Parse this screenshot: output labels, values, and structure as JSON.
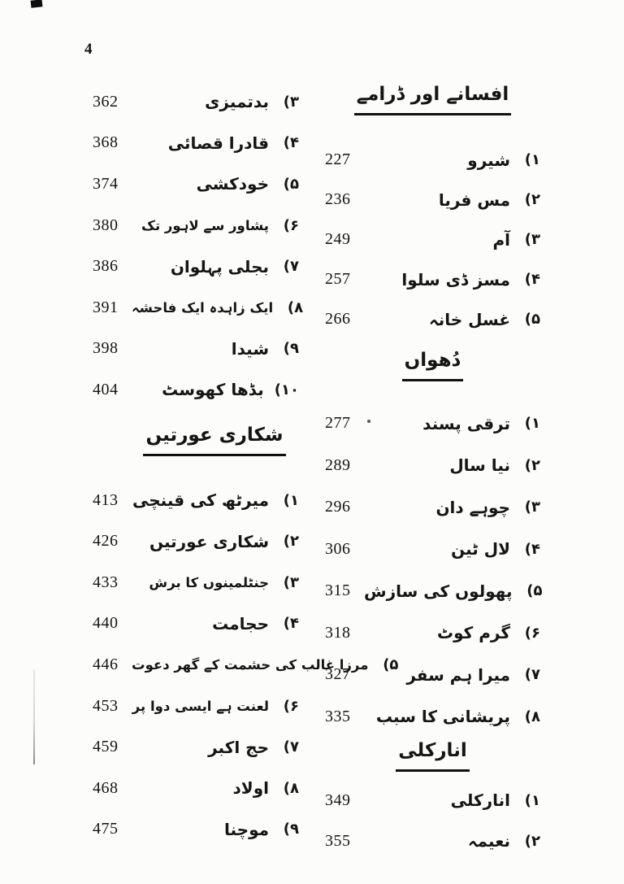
{
  "page": {
    "folio_number": "4",
    "ink_color": "#151515",
    "paper_color": "#fcfcfa"
  },
  "columns": {
    "right": {
      "sections": [
        {
          "header": "افسانے اور ڈرامے",
          "entries": [
            {
              "marker": "(۱",
              "title": "شیرو",
              "page": "227"
            },
            {
              "marker": "(۲",
              "title": "مس فریا",
              "page": "236"
            },
            {
              "marker": "(۳",
              "title": "آم",
              "page": "249"
            },
            {
              "marker": "(۴",
              "title": "مسز ڈی سلوا",
              "page": "257"
            },
            {
              "marker": "(۵",
              "title": "غسل خانہ",
              "page": "266"
            }
          ]
        },
        {
          "header": "دُھواں",
          "entries": [
            {
              "marker": "(۱",
              "title": "ترقی پسند",
              "page": "277"
            },
            {
              "marker": "(۲",
              "title": "نیا سال",
              "page": "289"
            },
            {
              "marker": "(۳",
              "title": "چوہے دان",
              "page": "296"
            },
            {
              "marker": "(۴",
              "title": "لال ٹین",
              "page": "306"
            },
            {
              "marker": "(۵",
              "title": "پھولوں کی سازش",
              "page": "315"
            },
            {
              "marker": "(۶",
              "title": "گرم کوٹ",
              "page": "318"
            },
            {
              "marker": "(۷",
              "title": "میرا ہم سفر",
              "page": "327"
            },
            {
              "marker": "(۸",
              "title": "پریشانی کا سبب",
              "page": "335"
            }
          ]
        },
        {
          "header": "انارکلی",
          "entries": [
            {
              "marker": "(۱",
              "title": "انارکلی",
              "page": "349"
            },
            {
              "marker": "(۲",
              "title": "نعیمہ",
              "page": "355"
            }
          ]
        }
      ]
    },
    "left": {
      "sections": [
        {
          "header": null,
          "entries": [
            {
              "marker": "(۳",
              "title": "بدتمیزی",
              "page": "362"
            },
            {
              "marker": "(۴",
              "title": "قادرا قصائی",
              "page": "368"
            },
            {
              "marker": "(۵",
              "title": "خودکشی",
              "page": "374"
            },
            {
              "marker": "(۶",
              "title": "پشاور سے لاہور تک",
              "page": "380"
            },
            {
              "marker": "(۷",
              "title": "بجلی پہلوان",
              "page": "386"
            },
            {
              "marker": "(۸",
              "title": "ایک زاہدہ ایک فاحشہ",
              "page": "391"
            },
            {
              "marker": "(۹",
              "title": "شیدا",
              "page": "398"
            },
            {
              "marker": "(۱۰",
              "title": "بڈھا کھوسٹ",
              "page": "404"
            }
          ]
        },
        {
          "header": "شکاری عورتیں",
          "entries": [
            {
              "marker": "(۱",
              "title": "میرٹھ کی قینچی",
              "page": "413"
            },
            {
              "marker": "(۲",
              "title": "شکاری عورتیں",
              "page": "426"
            },
            {
              "marker": "(۳",
              "title": "جنٹلمینوں کا برش",
              "page": "433"
            },
            {
              "marker": "(۴",
              "title": "حجامت",
              "page": "440"
            },
            {
              "marker": "(۵",
              "title": "مرزا غالب کی حشمت کے گھر دعوت",
              "page": "446"
            },
            {
              "marker": "(۶",
              "title": "لعنت ہے ایسی دوا پر",
              "page": "453"
            },
            {
              "marker": "(۷",
              "title": "حج اکبر",
              "page": "459"
            },
            {
              "marker": "(۸",
              "title": "اولاد",
              "page": "468"
            },
            {
              "marker": "(۹",
              "title": "موچنا",
              "page": "475"
            }
          ]
        }
      ]
    }
  }
}
